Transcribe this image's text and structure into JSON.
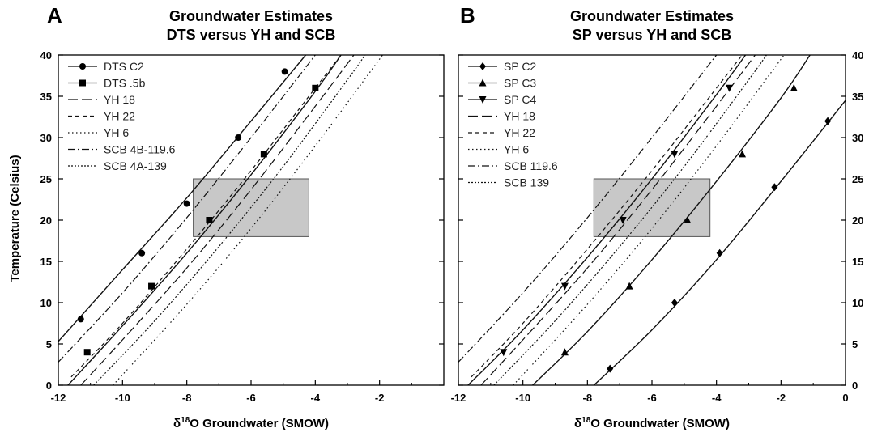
{
  "ylabel": "Temperature  (Celsius)",
  "chart_data": [
    {
      "type": "line",
      "panel_letter": "A",
      "title_line1": "Groundwater Estimates",
      "title_line2": "DTS versus YH and SCB",
      "xlabel_prefix": "δ",
      "xlabel_sup": "18",
      "xlabel_rest": "O  Groundwater  (SMOW)",
      "xlim": [
        -12,
        0
      ],
      "ylim": [
        0,
        40
      ],
      "xticks": [
        -12,
        -10,
        -8,
        -6,
        -4,
        -2
      ],
      "yticks": [
        0,
        5,
        10,
        15,
        20,
        25,
        30,
        35,
        40
      ],
      "y_axis_side": "left",
      "shaded_box": {
        "x": [
          -7.8,
          -4.2
        ],
        "y": [
          18,
          25
        ],
        "color": "#c8c8c8"
      },
      "legend": "top-left",
      "series": [
        {
          "name": "DTS C2",
          "style": "solid",
          "marker": "circle",
          "line": [
            [
              -12.0,
              5.3
            ],
            [
              -10.0,
              14.0
            ],
            [
              -8.0,
              22.7
            ],
            [
              -6.0,
              32.0
            ],
            [
              -4.3,
              40.0
            ]
          ],
          "points": [
            [
              -11.3,
              8
            ],
            [
              -9.4,
              16
            ],
            [
              -8.0,
              22
            ],
            [
              -6.4,
              30
            ],
            [
              -4.95,
              38
            ]
          ]
        },
        {
          "name": "DTS .5b",
          "style": "solid",
          "marker": "square",
          "line": [
            [
              -11.7,
              0.0
            ],
            [
              -10.0,
              7.2
            ],
            [
              -8.0,
              16.0
            ],
            [
              -6.0,
              25.5
            ],
            [
              -4.0,
              35.6
            ],
            [
              -3.2,
              40.0
            ]
          ],
          "points": [
            [
              -11.1,
              4
            ],
            [
              -9.1,
              12
            ],
            [
              -7.3,
              20
            ],
            [
              -5.6,
              28
            ],
            [
              -4.0,
              36
            ]
          ]
        },
        {
          "name": "YH 18",
          "style": "longdash",
          "marker": "none",
          "line": [
            [
              -11.3,
              0.0
            ],
            [
              -10.0,
              5.5
            ],
            [
              -8.0,
              14.2
            ],
            [
              -6.0,
              23.7
            ],
            [
              -4.0,
              33.8
            ],
            [
              -2.8,
              40.0
            ]
          ]
        },
        {
          "name": "YH 22",
          "style": "dash",
          "marker": "none",
          "line": [
            [
              -11.6,
              1.0
            ],
            [
              -10.0,
              7.5
            ],
            [
              -8.0,
              16.5
            ],
            [
              -6.0,
              26.0
            ],
            [
              -4.0,
              36.0
            ],
            [
              -3.2,
              40.0
            ]
          ]
        },
        {
          "name": "YH 6",
          "style": "dot",
          "marker": "none",
          "line": [
            [
              -10.3,
              0.0
            ],
            [
              -8.0,
              9.8
            ],
            [
              -6.0,
              19.0
            ],
            [
              -4.0,
              29.0
            ],
            [
              -2.0,
              39.5
            ],
            [
              -1.9,
              40.0
            ]
          ]
        },
        {
          "name": "SCB 4B-119.6",
          "style": "dashdot",
          "marker": "none",
          "line": [
            [
              -12.0,
              2.8
            ],
            [
              -10.0,
              11.2
            ],
            [
              -8.0,
              20.3
            ],
            [
              -6.0,
              30.0
            ],
            [
              -4.0,
              40.0
            ]
          ]
        },
        {
          "name": "SCB 4A-139",
          "style": "finedot",
          "marker": "none",
          "line": [
            [
              -10.9,
              0.0
            ],
            [
              -9.0,
              7.8
            ],
            [
              -7.0,
              16.8
            ],
            [
              -5.0,
              26.5
            ],
            [
              -3.0,
              37.0
            ],
            [
              -2.45,
              40.0
            ]
          ]
        }
      ]
    },
    {
      "type": "line",
      "panel_letter": "B",
      "title_line1": "Groundwater Estimates",
      "title_line2": "SP versus YH and SCB",
      "xlabel_prefix": "δ",
      "xlabel_sup": "18",
      "xlabel_rest": "O  Groundwater  (SMOW)",
      "xlim": [
        -12,
        0
      ],
      "ylim": [
        0,
        40
      ],
      "xticks": [
        -12,
        -10,
        -8,
        -6,
        -4,
        -2,
        0
      ],
      "yticks": [
        0,
        5,
        10,
        15,
        20,
        25,
        30,
        35,
        40
      ],
      "y_axis_side": "right",
      "shaded_box": {
        "x": [
          -7.8,
          -4.2
        ],
        "y": [
          18,
          25
        ],
        "color": "#c8c8c8"
      },
      "legend": "top-left",
      "series": [
        {
          "name": "SP C2",
          "style": "solid",
          "marker": "diamond",
          "line": [
            [
              -7.8,
              0.0
            ],
            [
              -6.0,
              6.7
            ],
            [
              -4.0,
              15.2
            ],
            [
              -2.0,
              24.7
            ],
            [
              0.0,
              34.5
            ]
          ],
          "points": [
            [
              -7.3,
              2
            ],
            [
              -5.3,
              10
            ],
            [
              -3.9,
              16
            ],
            [
              -2.2,
              24
            ],
            [
              -0.55,
              32
            ]
          ]
        },
        {
          "name": "SP C3",
          "style": "solid",
          "marker": "triangle-up",
          "line": [
            [
              -9.7,
              0.0
            ],
            [
              -8.0,
              6.5
            ],
            [
              -6.0,
              15.2
            ],
            [
              -4.0,
              24.7
            ],
            [
              -2.0,
              34.8
            ],
            [
              -1.1,
              40.0
            ]
          ],
          "points": [
            [
              -8.7,
              4
            ],
            [
              -6.7,
              12
            ],
            [
              -4.9,
              20
            ],
            [
              -3.2,
              28
            ],
            [
              -1.6,
              36
            ]
          ]
        },
        {
          "name": "SP C4",
          "style": "solid",
          "marker": "triangle-down",
          "line": [
            [
              -11.7,
              0.0
            ],
            [
              -10.0,
              6.7
            ],
            [
              -8.0,
              15.5
            ],
            [
              -6.0,
              25.0
            ],
            [
              -4.0,
              35.2
            ],
            [
              -3.1,
              40.0
            ]
          ],
          "points": [
            [
              -10.6,
              4
            ],
            [
              -8.7,
              12
            ],
            [
              -6.9,
              20
            ],
            [
              -5.3,
              28
            ],
            [
              -3.6,
              36
            ]
          ]
        },
        {
          "name": "YH 18",
          "style": "longdash",
          "marker": "none",
          "line": [
            [
              -11.3,
              0.0
            ],
            [
              -10.0,
              5.5
            ],
            [
              -8.0,
              14.2
            ],
            [
              -6.0,
              23.7
            ],
            [
              -4.0,
              33.8
            ],
            [
              -2.8,
              40.0
            ]
          ]
        },
        {
          "name": "YH 22",
          "style": "dash",
          "marker": "none",
          "line": [
            [
              -11.6,
              1.0
            ],
            [
              -10.0,
              7.5
            ],
            [
              -8.0,
              16.5
            ],
            [
              -6.0,
              26.0
            ],
            [
              -4.0,
              36.0
            ],
            [
              -3.2,
              40.0
            ]
          ]
        },
        {
          "name": "YH 6",
          "style": "dot",
          "marker": "none",
          "line": [
            [
              -10.3,
              0.0
            ],
            [
              -8.0,
              9.8
            ],
            [
              -6.0,
              19.0
            ],
            [
              -4.0,
              29.0
            ],
            [
              -2.0,
              39.5
            ],
            [
              -1.9,
              40.0
            ]
          ]
        },
        {
          "name": "SCB 119.6",
          "style": "dashdot",
          "marker": "none",
          "line": [
            [
              -12.0,
              2.8
            ],
            [
              -10.0,
              11.2
            ],
            [
              -8.0,
              20.3
            ],
            [
              -6.0,
              30.0
            ],
            [
              -4.0,
              40.0
            ]
          ]
        },
        {
          "name": "SCB 139",
          "style": "finedot",
          "marker": "none",
          "line": [
            [
              -10.9,
              0.0
            ],
            [
              -9.0,
              7.8
            ],
            [
              -7.0,
              16.8
            ],
            [
              -5.0,
              26.5
            ],
            [
              -3.0,
              37.0
            ],
            [
              -2.45,
              40.0
            ]
          ]
        }
      ]
    }
  ]
}
